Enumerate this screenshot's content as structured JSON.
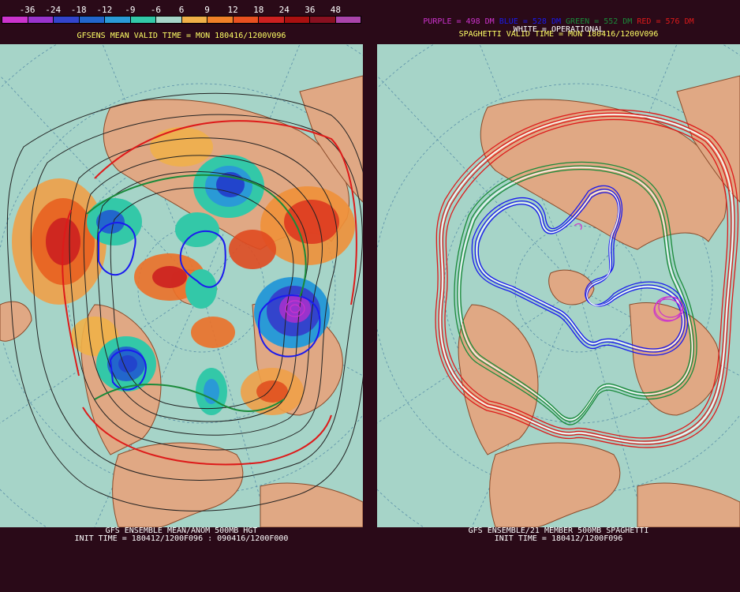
{
  "left": {
    "colorbar": {
      "ticks": [
        "-36",
        "-24",
        "-18",
        "-12",
        "-9",
        "-6",
        "6",
        "9",
        "12",
        "18",
        "24",
        "36",
        "48"
      ],
      "colors": [
        "#cc33cc",
        "#9933cc",
        "#3344cc",
        "#2266cc",
        "#2a9ad6",
        "#33c8a8",
        "#a6d4c8",
        "#f0b048",
        "#f08028",
        "#e85020",
        "#cc2020",
        "#aa1010",
        "#881020",
        "#aa44aa"
      ]
    },
    "title": "GFSENS MEAN VALID TIME = MON 180416/1200V096",
    "footer_line1": "GFS ENSEMBLE MEAN/ANOM 500MB HGT",
    "footer_line2": "INIT TIME = 180412/1200F096 : 090416/1200F000"
  },
  "right": {
    "legend": {
      "purple": "PURPLE = 498 DM",
      "blue": "BLUE = 528 DM",
      "green": "GREEN = 552 DM",
      "red": "RED = 576 DM"
    },
    "colors": {
      "purple": "#cc33cc",
      "blue": "#1a1aee",
      "green": "#1a8a3a",
      "red": "#dd1a1a",
      "white": "#ffffff"
    },
    "title": "SPAGHETTI VALID TIME = MON 180416/1200V096",
    "operational": "WHITE = OPERATIONAL",
    "footer_line1": "GFS ENSEMBLE/21 MEMBER 500MB SPAGHETTI",
    "footer_line2": "INIT TIME = 180412/1200F096"
  }
}
